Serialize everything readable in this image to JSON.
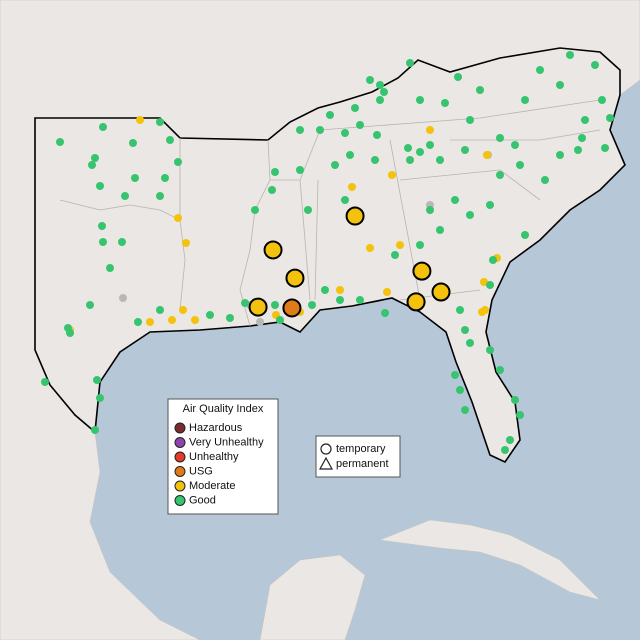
{
  "legend": {
    "title": "Air Quality Index",
    "items": [
      {
        "label": "Hazardous",
        "color": "#7b2b2b"
      },
      {
        "label": "Very Unhealthy",
        "color": "#8e44ad"
      },
      {
        "label": "Unhealthy",
        "color": "#e33b2b"
      },
      {
        "label": "USG",
        "color": "#e07b1a"
      },
      {
        "label": "Moderate",
        "color": "#f4c20d"
      },
      {
        "label": "Good",
        "color": "#37c46f"
      }
    ]
  },
  "monitor_legend": {
    "items": [
      {
        "label": "temporary",
        "shape": "circle"
      },
      {
        "label": "permanent",
        "shape": "triangle"
      }
    ]
  },
  "temporary_sites": [
    {
      "lon": -92.03,
      "lat": 31.95,
      "category": "Moderate"
    },
    {
      "lon": -91.02,
      "lat": 30.98,
      "category": "Moderate"
    },
    {
      "lon": -92.72,
      "lat": 29.98,
      "category": "Moderate"
    },
    {
      "lon": -91.16,
      "lat": 29.95,
      "category": "USG"
    },
    {
      "lon": -88.25,
      "lat": 33.12,
      "category": "Moderate"
    },
    {
      "lon": -85.17,
      "lat": 31.22,
      "category": "Moderate"
    },
    {
      "lon": -84.29,
      "lat": 30.5,
      "category": "Moderate"
    },
    {
      "lon": -85.44,
      "lat": 30.16,
      "category": "Moderate"
    }
  ]
}
